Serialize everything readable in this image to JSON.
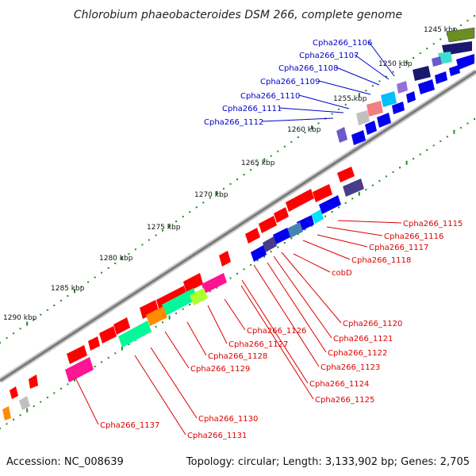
{
  "title": "Chlorobium phaeobacteroides DSM 266, complete genome",
  "footer": {
    "accession": "Accession: NC_008639",
    "summary": "Topology: circular; Length: 3,133,902 bp; Genes: 2,705"
  },
  "kbp_ticks": [
    "1245 kbp",
    "1250 kbp",
    "1255 kbp",
    "1260 kbp",
    "1265 kbp",
    "1270 kbp",
    "1275 kbp",
    "1280 kbp",
    "1285 kbp",
    "1290 kbp"
  ],
  "labels_blue": [
    "Cpha266_1106",
    "Cpha266_1107",
    "Cpha266_1108",
    "Cpha266_1109",
    "Cpha266_1110",
    "Cpha266_1111",
    "Cpha266_1112"
  ],
  "labels_red": [
    "Cpha266_1115",
    "Cpha266_1116",
    "Cpha266_1117",
    "Cpha266_1118",
    "cobD",
    "Cpha266_1120",
    "Cpha266_1121",
    "Cpha266_1122",
    "Cpha266_1123",
    "Cpha266_1124",
    "Cpha266_1125",
    "Cpha266_1126",
    "Cpha266_1127",
    "Cpha266_1128",
    "Cpha266_1129",
    "Cpha266_1130",
    "Cpha266_1131",
    "Cpha266_1137"
  ],
  "colors": {
    "forward": "#ff0000",
    "reverse": "#0000ee",
    "backbone": "#8c8c8c",
    "gc_dots": "#1e8c1e",
    "label_blue": "#0000cc",
    "label_red": "#dd0000"
  }
}
